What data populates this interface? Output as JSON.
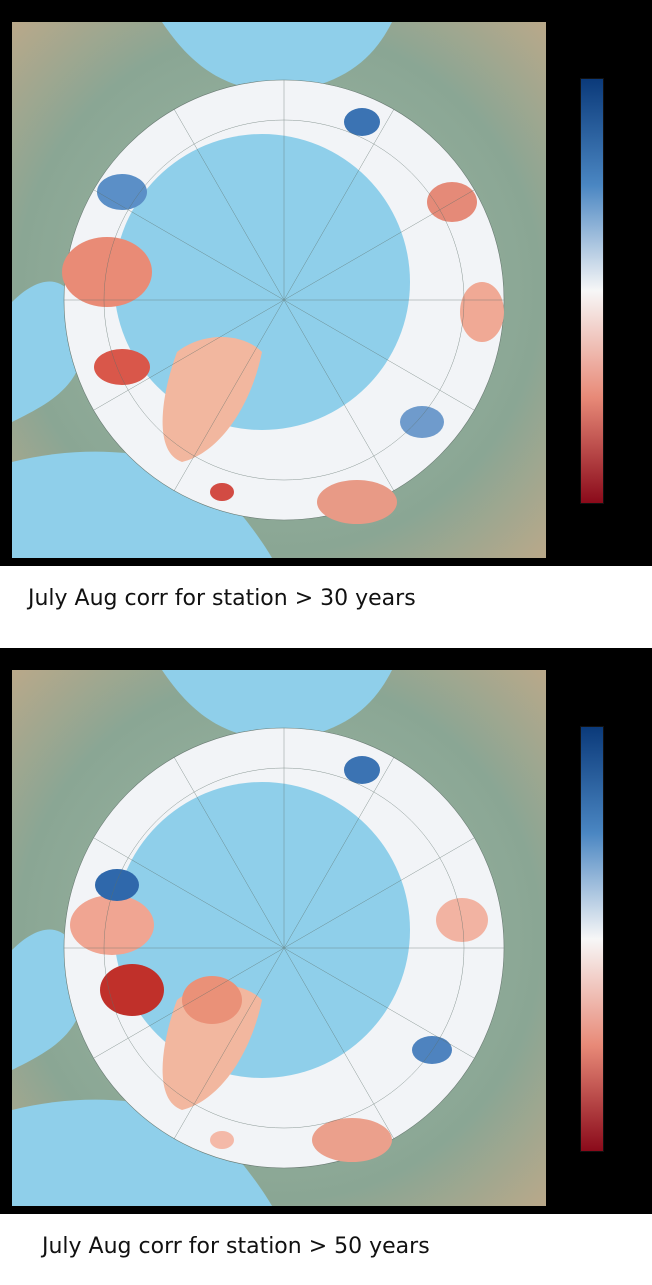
{
  "colors": {
    "ocean": "#8fcfea",
    "land": "#8aa694",
    "land_light": "#c9b79a",
    "cold": "#1d5fa3",
    "warm": "#c62b2b",
    "neutral": "#f4f6f8"
  },
  "colorbar": {
    "top_color": "#0b3a7a",
    "mid_color": "#f7f7f7",
    "bottom_color": "#8a0a1a"
  },
  "panels": [
    {
      "caption": "July Aug corr for station > 30 years"
    },
    {
      "caption": "July Aug corr for station > 50 years"
    }
  ]
}
